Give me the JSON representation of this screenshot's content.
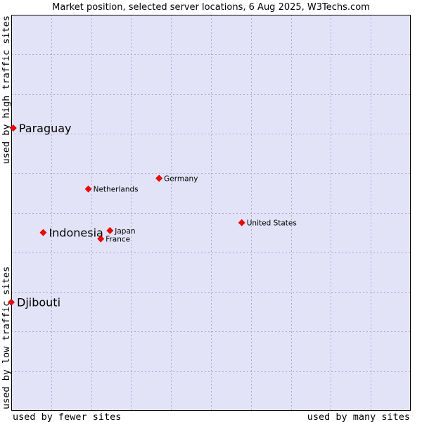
{
  "chart_data": {
    "type": "scatter",
    "title": "Market position, selected server locations, 6 Aug 2025, W3Techs.com",
    "xlabel_low": "used by fewer sites",
    "xlabel_high": "used by many sites",
    "ylabel_low": "used by low traffic sites",
    "ylabel_high": "used by high traffic sites",
    "xlim": [
      0,
      10
    ],
    "ylim": [
      0,
      10
    ],
    "grid": true,
    "colors": {
      "plot_bg": "#e3e3f7",
      "grid": "#a9a9c8",
      "marker": "#ff0000",
      "marker_stroke": "#b00000",
      "frame": "#000000"
    },
    "points": [
      {
        "name": "Paraguay",
        "x": 0.05,
        "y": 7.14,
        "emphasis": true
      },
      {
        "name": "Germany",
        "x": 3.7,
        "y": 5.87,
        "emphasis": false
      },
      {
        "name": "Netherlands",
        "x": 1.93,
        "y": 5.6,
        "emphasis": false
      },
      {
        "name": "United States",
        "x": 5.77,
        "y": 4.75,
        "emphasis": false
      },
      {
        "name": "Japan",
        "x": 2.47,
        "y": 4.55,
        "emphasis": false
      },
      {
        "name": "Indonesia",
        "x": 0.8,
        "y": 4.5,
        "emphasis": true
      },
      {
        "name": "France",
        "x": 2.24,
        "y": 4.34,
        "emphasis": false
      },
      {
        "name": "Djibouti",
        "x": 0.0,
        "y": 2.74,
        "emphasis": true
      }
    ]
  }
}
